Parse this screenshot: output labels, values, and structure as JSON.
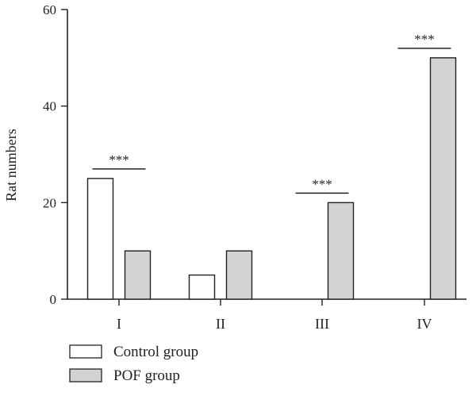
{
  "chart_data": {
    "type": "bar",
    "title": "",
    "xlabel": "",
    "ylabel": "Rat numbers",
    "ylim": [
      0,
      60
    ],
    "yticks": [
      0,
      20,
      40,
      60
    ],
    "categories": [
      "I",
      "II",
      "III",
      "IV"
    ],
    "series": [
      {
        "name": "Control group",
        "values": [
          25,
          5,
          0,
          0
        ],
        "color": "#ffffff"
      },
      {
        "name": "POF group",
        "values": [
          10,
          10,
          20,
          50
        ],
        "color": "#d3d3d3"
      }
    ],
    "significance": [
      {
        "category_index": 0,
        "label": "***"
      },
      {
        "category_index": 2,
        "label": "***"
      },
      {
        "category_index": 3,
        "label": "***"
      }
    ],
    "grid": false,
    "legend": "bottom-left"
  }
}
